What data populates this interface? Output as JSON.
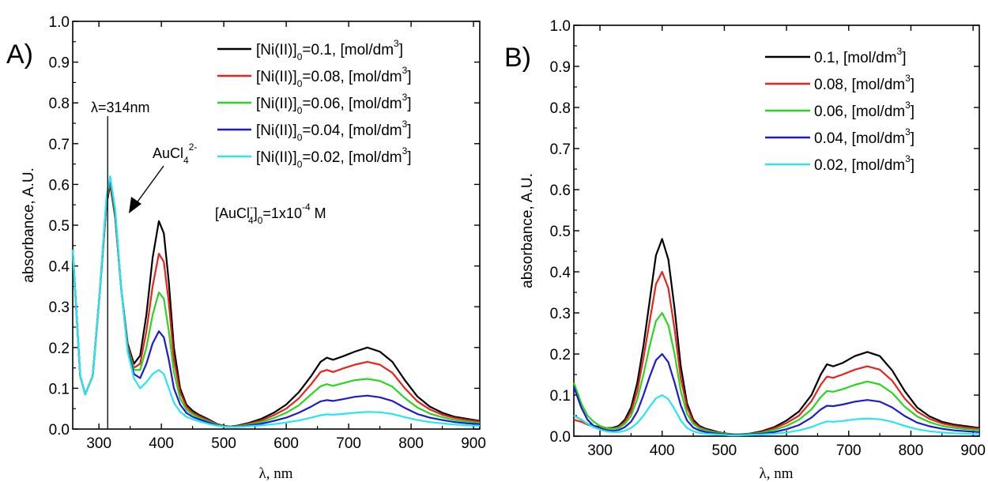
{
  "chart_data": [
    {
      "type": "line",
      "panel_label": "A)",
      "xlabel": "λ, nm",
      "ylabel": "absorbance, A.U.",
      "xlim": [
        258,
        910
      ],
      "ylim": [
        0.0,
        1.0
      ],
      "xticks": [
        300,
        400,
        500,
        600,
        700,
        800,
        900
      ],
      "yticks": [
        0.0,
        0.1,
        0.2,
        0.3,
        0.4,
        0.5,
        0.6,
        0.7,
        0.8,
        0.9,
        1.0
      ],
      "legend_position": "top-right",
      "annotations": {
        "vline_x": 314,
        "vline_label": "λ=314nm",
        "arrow_label": {
          "base": "AuCl",
          "sub": "4",
          "sup": "2-"
        },
        "conc_note": {
          "a": "[AuCl",
          "sup1": "-",
          "sub1": "4",
          "b": "]",
          "sub2": "0",
          "c": "=1x10",
          "sup2": "-4",
          "d": " M"
        }
      },
      "x": [
        258,
        270,
        278,
        290,
        300,
        312,
        318,
        326,
        336,
        346,
        356,
        366,
        376,
        386,
        396,
        404,
        412,
        420,
        430,
        440,
        450,
        460,
        470,
        480,
        490,
        500,
        510,
        520,
        540,
        560,
        580,
        600,
        620,
        640,
        655,
        665,
        675,
        690,
        710,
        730,
        750,
        770,
        790,
        810,
        830,
        850,
        870,
        890,
        910
      ],
      "series": [
        {
          "label": "[Ni(II)]",
          "sub": "0",
          "label_rest": "=0.1, [mol/dm",
          "sup": "3",
          "label_end": "]",
          "color": "#000000",
          "values": [
            0.44,
            0.13,
            0.085,
            0.13,
            0.31,
            0.55,
            0.6,
            0.52,
            0.34,
            0.21,
            0.16,
            0.18,
            0.28,
            0.42,
            0.51,
            0.48,
            0.36,
            0.2,
            0.1,
            0.06,
            0.045,
            0.035,
            0.028,
            0.02,
            0.012,
            0.008,
            0.006,
            0.008,
            0.015,
            0.025,
            0.04,
            0.06,
            0.09,
            0.13,
            0.165,
            0.175,
            0.17,
            0.178,
            0.19,
            0.2,
            0.19,
            0.165,
            0.12,
            0.08,
            0.055,
            0.04,
            0.03,
            0.025,
            0.02
          ]
        },
        {
          "label": "[Ni(II)]",
          "sub": "0",
          "label_rest": "=0.08, [mol/dm",
          "sup": "3",
          "label_end": "]",
          "color": "#e8231c",
          "values": [
            0.44,
            0.13,
            0.085,
            0.13,
            0.31,
            0.555,
            0.605,
            0.525,
            0.34,
            0.205,
            0.15,
            0.16,
            0.24,
            0.35,
            0.43,
            0.41,
            0.31,
            0.17,
            0.09,
            0.055,
            0.04,
            0.032,
            0.025,
            0.018,
            0.011,
            0.007,
            0.006,
            0.007,
            0.013,
            0.021,
            0.034,
            0.05,
            0.075,
            0.11,
            0.14,
            0.145,
            0.14,
            0.148,
            0.158,
            0.165,
            0.158,
            0.138,
            0.1,
            0.068,
            0.048,
            0.035,
            0.027,
            0.022,
            0.018
          ]
        },
        {
          "label": "[Ni(II)]",
          "sub": "0",
          "label_rest": "=0.06, [mol/dm",
          "sup": "3",
          "label_end": "]",
          "color": "#29d61d",
          "values": [
            0.44,
            0.13,
            0.085,
            0.13,
            0.31,
            0.56,
            0.61,
            0.53,
            0.34,
            0.2,
            0.145,
            0.145,
            0.2,
            0.28,
            0.335,
            0.32,
            0.24,
            0.14,
            0.075,
            0.048,
            0.036,
            0.028,
            0.022,
            0.016,
            0.01,
            0.007,
            0.005,
            0.006,
            0.011,
            0.017,
            0.027,
            0.04,
            0.058,
            0.085,
            0.105,
            0.11,
            0.106,
            0.112,
            0.12,
            0.123,
            0.118,
            0.104,
            0.076,
            0.053,
            0.038,
            0.029,
            0.022,
            0.018,
            0.015
          ]
        },
        {
          "label": "[Ni(II)]",
          "sub": "0",
          "label_rest": "=0.04, [mol/dm",
          "sup": "3",
          "label_end": "]",
          "color": "#1c1ccf",
          "values": [
            0.44,
            0.13,
            0.085,
            0.13,
            0.31,
            0.565,
            0.615,
            0.535,
            0.34,
            0.195,
            0.135,
            0.125,
            0.16,
            0.21,
            0.24,
            0.225,
            0.17,
            0.1,
            0.06,
            0.04,
            0.03,
            0.024,
            0.019,
            0.014,
            0.009,
            0.006,
            0.005,
            0.005,
            0.009,
            0.013,
            0.02,
            0.028,
            0.04,
            0.055,
            0.068,
            0.071,
            0.069,
            0.073,
            0.079,
            0.082,
            0.078,
            0.069,
            0.052,
            0.037,
            0.028,
            0.022,
            0.017,
            0.014,
            0.012
          ]
        },
        {
          "label": "[Ni(II)]",
          "sub": "0",
          "label_rest": "=0.02, [mol/dm",
          "sup": "3",
          "label_end": "]",
          "color": "#27e6f0",
          "values": [
            0.44,
            0.13,
            0.085,
            0.13,
            0.31,
            0.57,
            0.62,
            0.54,
            0.34,
            0.19,
            0.125,
            0.1,
            0.115,
            0.135,
            0.145,
            0.135,
            0.1,
            0.065,
            0.042,
            0.03,
            0.024,
            0.019,
            0.015,
            0.011,
            0.008,
            0.006,
            0.005,
            0.005,
            0.007,
            0.009,
            0.012,
            0.016,
            0.021,
            0.028,
            0.034,
            0.036,
            0.035,
            0.037,
            0.04,
            0.042,
            0.041,
            0.037,
            0.029,
            0.022,
            0.017,
            0.014,
            0.011,
            0.009,
            0.008
          ]
        }
      ]
    },
    {
      "type": "line",
      "panel_label": "B)",
      "xlabel": "λ, nm",
      "ylabel": "absorbance, A.U.",
      "xlim": [
        258,
        910
      ],
      "ylim": [
        0.0,
        1.0
      ],
      "xticks": [
        300,
        400,
        500,
        600,
        700,
        800,
        900
      ],
      "yticks": [
        0.0,
        0.1,
        0.2,
        0.3,
        0.4,
        0.5,
        0.6,
        0.7,
        0.8,
        0.9,
        1.0
      ],
      "legend_position": "top-right",
      "x": [
        258,
        270,
        280,
        290,
        300,
        310,
        320,
        330,
        340,
        350,
        360,
        370,
        380,
        390,
        400,
        410,
        420,
        430,
        440,
        450,
        460,
        470,
        480,
        490,
        500,
        510,
        520,
        540,
        560,
        580,
        600,
        620,
        640,
        655,
        665,
        675,
        690,
        710,
        730,
        750,
        770,
        790,
        810,
        830,
        850,
        870,
        890,
        910
      ],
      "series": [
        {
          "label": "0.1, [mol/dm",
          "sup": "3",
          "label_end": "]",
          "color": "#000000",
          "values": [
            0.05,
            0.04,
            0.03,
            0.025,
            0.022,
            0.02,
            0.02,
            0.025,
            0.04,
            0.07,
            0.13,
            0.22,
            0.33,
            0.44,
            0.48,
            0.43,
            0.31,
            0.17,
            0.08,
            0.04,
            0.025,
            0.018,
            0.014,
            0.01,
            0.007,
            0.005,
            0.004,
            0.006,
            0.012,
            0.022,
            0.038,
            0.06,
            0.1,
            0.15,
            0.175,
            0.17,
            0.178,
            0.195,
            0.205,
            0.195,
            0.16,
            0.11,
            0.07,
            0.048,
            0.035,
            0.028,
            0.024,
            0.02
          ]
        },
        {
          "label": "0.08, [mol/dm",
          "sup": "3",
          "label_end": "]",
          "color": "#e8231c",
          "values": [
            0.04,
            0.035,
            0.028,
            0.023,
            0.02,
            0.018,
            0.018,
            0.022,
            0.035,
            0.06,
            0.11,
            0.19,
            0.28,
            0.37,
            0.4,
            0.36,
            0.26,
            0.14,
            0.07,
            0.035,
            0.022,
            0.016,
            0.012,
            0.009,
            0.006,
            0.005,
            0.004,
            0.005,
            0.01,
            0.019,
            0.032,
            0.05,
            0.085,
            0.125,
            0.145,
            0.142,
            0.15,
            0.162,
            0.17,
            0.162,
            0.135,
            0.092,
            0.06,
            0.042,
            0.031,
            0.025,
            0.021,
            0.018
          ]
        },
        {
          "label": "0.06, [mol/dm",
          "sup": "3",
          "label_end": "]",
          "color": "#29d61d",
          "values": [
            0.13,
            0.08,
            0.05,
            0.035,
            0.025,
            0.02,
            0.018,
            0.02,
            0.03,
            0.05,
            0.09,
            0.15,
            0.22,
            0.28,
            0.3,
            0.27,
            0.2,
            0.11,
            0.055,
            0.03,
            0.019,
            0.014,
            0.011,
            0.008,
            0.006,
            0.004,
            0.004,
            0.005,
            0.008,
            0.015,
            0.025,
            0.04,
            0.065,
            0.095,
            0.11,
            0.108,
            0.114,
            0.125,
            0.133,
            0.126,
            0.105,
            0.072,
            0.048,
            0.034,
            0.025,
            0.02,
            0.017,
            0.015
          ]
        },
        {
          "label": "0.04, [mol/dm",
          "sup": "3",
          "label_end": "]",
          "color": "#1c1ccf",
          "values": [
            0.12,
            0.07,
            0.04,
            0.025,
            0.018,
            0.014,
            0.013,
            0.015,
            0.022,
            0.035,
            0.06,
            0.1,
            0.145,
            0.185,
            0.2,
            0.18,
            0.13,
            0.075,
            0.038,
            0.021,
            0.014,
            0.01,
            0.008,
            0.006,
            0.004,
            0.003,
            0.003,
            0.004,
            0.006,
            0.01,
            0.017,
            0.027,
            0.045,
            0.065,
            0.074,
            0.073,
            0.077,
            0.084,
            0.088,
            0.084,
            0.07,
            0.049,
            0.033,
            0.024,
            0.018,
            0.014,
            0.012,
            0.01
          ]
        },
        {
          "label": "0.02, [mol/dm",
          "sup": "3",
          "label_end": "]",
          "color": "#27e6f0",
          "values": [
            0.05,
            0.04,
            0.03,
            0.022,
            0.016,
            0.012,
            0.01,
            0.01,
            0.013,
            0.02,
            0.032,
            0.05,
            0.072,
            0.092,
            0.1,
            0.09,
            0.066,
            0.038,
            0.02,
            0.012,
            0.008,
            0.006,
            0.005,
            0.004,
            0.003,
            0.002,
            0.002,
            0.003,
            0.004,
            0.006,
            0.009,
            0.014,
            0.022,
            0.031,
            0.036,
            0.035,
            0.037,
            0.041,
            0.043,
            0.041,
            0.035,
            0.025,
            0.017,
            0.012,
            0.009,
            0.007,
            0.006,
            0.005
          ]
        }
      ]
    }
  ]
}
